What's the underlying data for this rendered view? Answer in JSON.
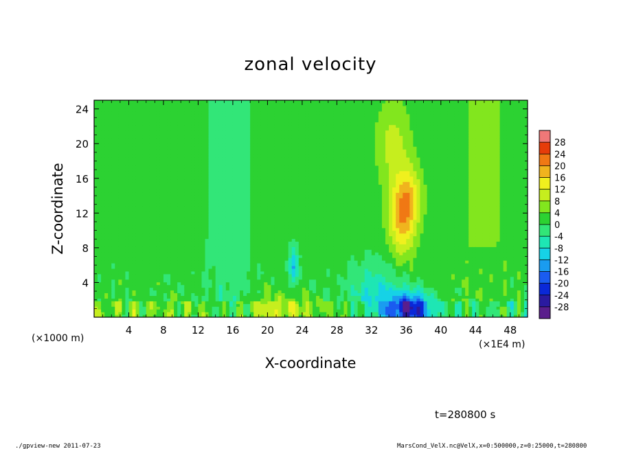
{
  "chart_data": {
    "type": "heatmap",
    "title": "zonal velocity",
    "xlabel": "X-coordinate",
    "ylabel": "Z-coordinate",
    "x_unit": "(×1E4 m)",
    "y_unit": "(×1000 m)",
    "xlim": [
      0,
      50
    ],
    "ylim": [
      0,
      25
    ],
    "x_ticks": [
      "4",
      "8",
      "12",
      "16",
      "20",
      "24",
      "28",
      "32",
      "36",
      "40",
      "44",
      "48"
    ],
    "y_ticks": [
      "4",
      "8",
      "12",
      "16",
      "20",
      "24"
    ],
    "x_tick_values": [
      4,
      8,
      12,
      16,
      20,
      24,
      28,
      32,
      36,
      40,
      44,
      48
    ],
    "y_tick_values": [
      4,
      8,
      12,
      16,
      20,
      24
    ],
    "colorbar": {
      "levels": [
        -32,
        -28,
        -24,
        -20,
        -16,
        -12,
        -8,
        -4,
        0,
        4,
        8,
        12,
        16,
        20,
        24,
        28,
        32
      ],
      "labels": [
        "-28",
        "-24",
        "-20",
        "-16",
        "-12",
        "-8",
        "-4",
        "0",
        "4",
        "8",
        "12",
        "16",
        "20",
        "24",
        "28"
      ],
      "colors": [
        "#5a1e8c",
        "#2a1aa0",
        "#0a28d8",
        "#1a5cf0",
        "#1a9cf0",
        "#16d2e6",
        "#1ee6b4",
        "#32e678",
        "#2cd232",
        "#82e61e",
        "#c6ee1e",
        "#f0f01e",
        "#f0b41e",
        "#f07814",
        "#e63c0a",
        "#f07878"
      ]
    },
    "features": [
      {
        "x": 35.5,
        "z": 11.5,
        "value": 20
      },
      {
        "x": 36.5,
        "z": 1.5,
        "value": -22
      },
      {
        "x": 35,
        "z": 21,
        "value": 11
      },
      {
        "x": 15.5,
        "z": 16,
        "value": -9
      },
      {
        "x": 23,
        "z": 6,
        "value": -13
      }
    ]
  },
  "labels": {
    "time": "t=280800 s",
    "footer_left": "./gpview-new   2011-07-23",
    "footer_right": "MarsCond_VelX.nc@VelX,x=0:500000,z=0:25000,t=280800"
  }
}
